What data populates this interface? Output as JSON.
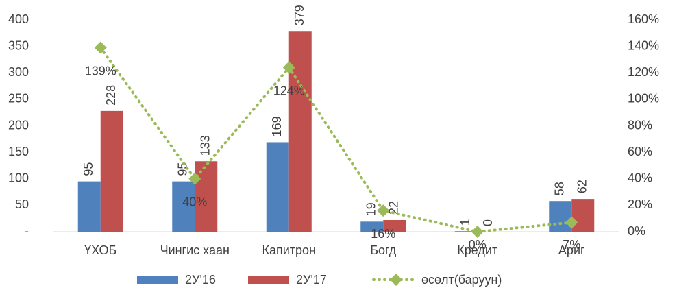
{
  "chart_data": {
    "type": "bar",
    "categories": [
      "ҮХОБ",
      "Чингис хаан",
      "Капитрон",
      "Богд",
      "Кредит",
      "Ариг"
    ],
    "series": [
      {
        "name": "2У'16",
        "color": "#4f81bd",
        "values": [
          95,
          95,
          169,
          19,
          1,
          58
        ]
      },
      {
        "name": "2У'17",
        "color": "#c0504d",
        "values": [
          228,
          133,
          379,
          22,
          0,
          62
        ]
      },
      {
        "name": "өсөлт(баруун)",
        "color": "#9bbb59",
        "type": "line",
        "axis": "y2",
        "values": [
          139,
          40,
          124,
          16,
          0,
          7
        ],
        "value_labels": [
          "139%",
          "40%",
          "124%",
          "16%",
          "0%",
          "7%"
        ]
      }
    ],
    "ylim": [
      0,
      400
    ],
    "yticks": [
      {
        "value": 0,
        "label": "-"
      },
      50,
      100,
      150,
      200,
      250,
      300,
      350,
      400
    ],
    "y2lim": [
      0,
      160
    ],
    "y2ticks": [
      {
        "value": 0,
        "label": "0%"
      },
      {
        "value": 20,
        "label": "20%"
      },
      {
        "value": 40,
        "label": "40%"
      },
      {
        "value": 60,
        "label": "60%"
      },
      {
        "value": 80,
        "label": "80%"
      },
      {
        "value": 100,
        "label": "100%"
      },
      {
        "value": 120,
        "label": "120%"
      },
      {
        "value": 140,
        "label": "140%"
      },
      {
        "value": 160,
        "label": "160%"
      }
    ],
    "legend": "bottom"
  }
}
